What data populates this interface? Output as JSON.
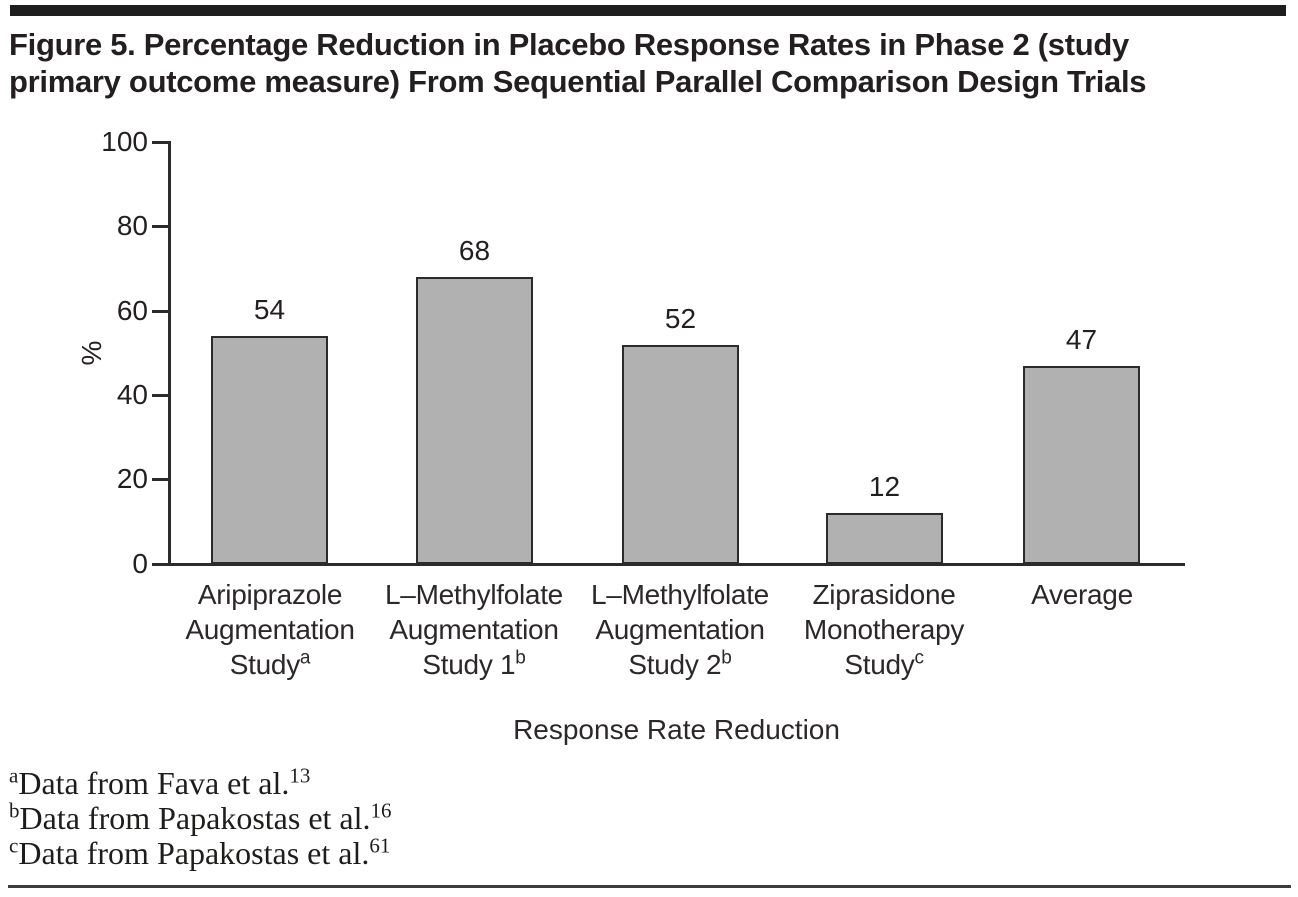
{
  "figure": {
    "title_lines": [
      "Figure 5. Percentage Reduction in Placebo Response Rates in Phase 2 (study",
      "primary outcome measure) From Sequential Parallel Comparison Design Trials"
    ],
    "title_full": "Figure 5. Percentage Reduction in Placebo Response Rates in Phase 2 (study primary outcome measure) From Sequential Parallel Comparison Design Trials"
  },
  "chart_data": {
    "type": "bar",
    "title": "Figure 5. Percentage Reduction in Placebo Response Rates in Phase 2 (study primary outcome measure) From Sequential Parallel Comparison Design Trials",
    "xlabel": "Response Rate Reduction",
    "ylabel": "%",
    "ylim": [
      0,
      100
    ],
    "y_ticks": [
      0,
      20,
      40,
      60,
      80,
      100
    ],
    "y_tick_labels_top_to_bottom": [
      "100",
      "80",
      "60",
      "40",
      "20",
      "0"
    ],
    "grid": false,
    "legend": false,
    "bar_color": "#b1b1b1",
    "bar_border_color": "#2b2b2b",
    "values": [
      54,
      68,
      52,
      12,
      47
    ],
    "categories": [
      {
        "name": "Aripiprazole Augmentation Study",
        "lines": [
          "Aripiprazole",
          "Augmentation",
          "Study"
        ],
        "sup": "a"
      },
      {
        "name": "L–Methylfolate Augmentation Study 1",
        "lines": [
          "L–Methylfolate",
          "Augmentation",
          "Study 1"
        ],
        "sup": "b"
      },
      {
        "name": "L–Methylfolate Augmentation Study 2",
        "lines": [
          "L–Methylfolate",
          "Augmentation",
          "Study 2"
        ],
        "sup": "b"
      },
      {
        "name": "Ziprasidone Monotherapy Study",
        "lines": [
          "Ziprasidone",
          "Monotherapy",
          "Study"
        ],
        "sup": "c"
      },
      {
        "name": "Average",
        "lines": [
          "Average"
        ],
        "sup": ""
      }
    ]
  },
  "footnotes": [
    {
      "marker": "a",
      "text": "Data from Fava et al.",
      "ref": "13"
    },
    {
      "marker": "b",
      "text": "Data from Papakostas et al.",
      "ref": "16"
    },
    {
      "marker": "c",
      "text": "Data from Papakostas et al.",
      "ref": "61"
    }
  ]
}
